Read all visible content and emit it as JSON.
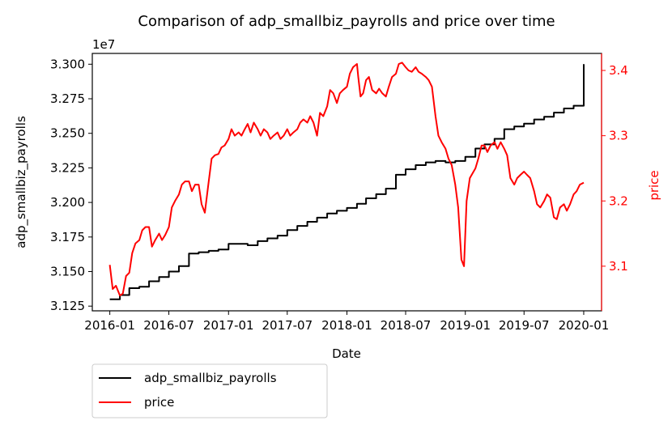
{
  "chart_data": {
    "type": "line",
    "title": "Comparison of adp_smallbiz_payrolls and price over time",
    "xlabel": "Date",
    "ylabel_left": "adp_smallbiz_payrolls",
    "ylabel_right": "price",
    "left_offset_text": "1e7",
    "x_range": [
      "2015-11-08",
      "2020-02-25"
    ],
    "x_ticks": [
      "2016-01",
      "2016-07",
      "2017-01",
      "2017-07",
      "2018-01",
      "2018-07",
      "2019-01",
      "2019-07",
      "2020-01"
    ],
    "x_tick_dates": [
      "2016-01-01",
      "2016-07-01",
      "2017-01-01",
      "2017-07-01",
      "2018-01-01",
      "2018-07-01",
      "2019-01-01",
      "2019-07-01",
      "2020-01-01"
    ],
    "ylim_left": [
      3.1216,
      3.3078
    ],
    "y_ticks_left": [
      "3.125",
      "3.150",
      "3.175",
      "3.200",
      "3.225",
      "3.250",
      "3.275",
      "3.300"
    ],
    "ylim_right": [
      3.0316,
      3.4261
    ],
    "y_ticks_right": [
      "3.1",
      "3.2",
      "3.3",
      "3.4"
    ],
    "grid": false,
    "legend_placement": "below-left",
    "colors": {
      "adp_smallbiz_payrolls": "#000000",
      "price": "#ff0000"
    },
    "series": [
      {
        "name": "adp_smallbiz_payrolls",
        "axis": "left",
        "step": true,
        "points": [
          [
            "2016-01-01",
            3.13
          ],
          [
            "2016-02-01",
            3.133
          ],
          [
            "2016-03-01",
            3.138
          ],
          [
            "2016-04-01",
            3.139
          ],
          [
            "2016-05-01",
            3.143
          ],
          [
            "2016-06-01",
            3.146
          ],
          [
            "2016-07-01",
            3.15
          ],
          [
            "2016-08-01",
            3.154
          ],
          [
            "2016-09-01",
            3.163
          ],
          [
            "2016-10-01",
            3.164
          ],
          [
            "2016-11-01",
            3.165
          ],
          [
            "2016-12-01",
            3.166
          ],
          [
            "2017-01-01",
            3.17
          ],
          [
            "2017-02-01",
            3.17
          ],
          [
            "2017-03-01",
            3.169
          ],
          [
            "2017-04-01",
            3.172
          ],
          [
            "2017-05-01",
            3.174
          ],
          [
            "2017-06-01",
            3.176
          ],
          [
            "2017-07-01",
            3.18
          ],
          [
            "2017-08-01",
            3.183
          ],
          [
            "2017-09-01",
            3.186
          ],
          [
            "2017-10-01",
            3.189
          ],
          [
            "2017-11-01",
            3.192
          ],
          [
            "2017-12-01",
            3.194
          ],
          [
            "2018-01-01",
            3.196
          ],
          [
            "2018-02-01",
            3.199
          ],
          [
            "2018-03-01",
            3.203
          ],
          [
            "2018-04-01",
            3.206
          ],
          [
            "2018-05-01",
            3.21
          ],
          [
            "2018-06-01",
            3.22
          ],
          [
            "2018-07-01",
            3.224
          ],
          [
            "2018-08-01",
            3.227
          ],
          [
            "2018-09-01",
            3.229
          ],
          [
            "2018-10-01",
            3.23
          ],
          [
            "2018-11-01",
            3.229
          ],
          [
            "2018-12-01",
            3.23
          ],
          [
            "2019-01-01",
            3.233
          ],
          [
            "2019-02-01",
            3.239
          ],
          [
            "2019-03-01",
            3.242
          ],
          [
            "2019-04-01",
            3.246
          ],
          [
            "2019-05-01",
            3.253
          ],
          [
            "2019-06-01",
            3.255
          ],
          [
            "2019-07-01",
            3.257
          ],
          [
            "2019-08-01",
            3.26
          ],
          [
            "2019-09-01",
            3.262
          ],
          [
            "2019-10-01",
            3.265
          ],
          [
            "2019-11-01",
            3.268
          ],
          [
            "2019-12-01",
            3.27
          ],
          [
            "2020-01-01",
            3.3
          ]
        ]
      },
      {
        "name": "price",
        "axis": "right",
        "step": false,
        "points": [
          [
            "2016-01-01",
            3.102
          ],
          [
            "2016-01-10",
            3.065
          ],
          [
            "2016-01-20",
            3.07
          ],
          [
            "2016-02-01",
            3.055
          ],
          [
            "2016-02-10",
            3.058
          ],
          [
            "2016-02-20",
            3.085
          ],
          [
            "2016-03-01",
            3.09
          ],
          [
            "2016-03-10",
            3.12
          ],
          [
            "2016-03-20",
            3.135
          ],
          [
            "2016-04-01",
            3.14
          ],
          [
            "2016-04-10",
            3.155
          ],
          [
            "2016-04-20",
            3.16
          ],
          [
            "2016-05-01",
            3.16
          ],
          [
            "2016-05-10",
            3.13
          ],
          [
            "2016-05-20",
            3.14
          ],
          [
            "2016-06-01",
            3.15
          ],
          [
            "2016-06-10",
            3.14
          ],
          [
            "2016-06-20",
            3.148
          ],
          [
            "2016-07-01",
            3.16
          ],
          [
            "2016-07-10",
            3.19
          ],
          [
            "2016-07-20",
            3.2
          ],
          [
            "2016-08-01",
            3.21
          ],
          [
            "2016-08-10",
            3.225
          ],
          [
            "2016-08-20",
            3.23
          ],
          [
            "2016-09-01",
            3.23
          ],
          [
            "2016-09-10",
            3.215
          ],
          [
            "2016-09-20",
            3.225
          ],
          [
            "2016-10-01",
            3.225
          ],
          [
            "2016-10-10",
            3.195
          ],
          [
            "2016-10-20",
            3.182
          ],
          [
            "2016-11-01",
            3.23
          ],
          [
            "2016-11-10",
            3.265
          ],
          [
            "2016-11-20",
            3.27
          ],
          [
            "2016-12-01",
            3.272
          ],
          [
            "2016-12-10",
            3.282
          ],
          [
            "2016-12-20",
            3.285
          ],
          [
            "2017-01-01",
            3.295
          ],
          [
            "2017-01-10",
            3.31
          ],
          [
            "2017-01-20",
            3.3
          ],
          [
            "2017-02-01",
            3.305
          ],
          [
            "2017-02-10",
            3.3
          ],
          [
            "2017-02-20",
            3.31
          ],
          [
            "2017-03-01",
            3.318
          ],
          [
            "2017-03-10",
            3.305
          ],
          [
            "2017-03-20",
            3.32
          ],
          [
            "2017-04-01",
            3.31
          ],
          [
            "2017-04-10",
            3.3
          ],
          [
            "2017-04-20",
            3.31
          ],
          [
            "2017-05-01",
            3.305
          ],
          [
            "2017-05-10",
            3.295
          ],
          [
            "2017-05-20",
            3.3
          ],
          [
            "2017-06-01",
            3.305
          ],
          [
            "2017-06-10",
            3.295
          ],
          [
            "2017-06-20",
            3.3
          ],
          [
            "2017-07-01",
            3.31
          ],
          [
            "2017-07-10",
            3.3
          ],
          [
            "2017-07-20",
            3.305
          ],
          [
            "2017-08-01",
            3.31
          ],
          [
            "2017-08-10",
            3.32
          ],
          [
            "2017-08-20",
            3.325
          ],
          [
            "2017-09-01",
            3.32
          ],
          [
            "2017-09-10",
            3.33
          ],
          [
            "2017-09-20",
            3.32
          ],
          [
            "2017-10-01",
            3.3
          ],
          [
            "2017-10-10",
            3.335
          ],
          [
            "2017-10-20",
            3.33
          ],
          [
            "2017-11-01",
            3.345
          ],
          [
            "2017-11-10",
            3.37
          ],
          [
            "2017-11-20",
            3.365
          ],
          [
            "2017-12-01",
            3.35
          ],
          [
            "2017-12-10",
            3.365
          ],
          [
            "2017-12-20",
            3.37
          ],
          [
            "2018-01-01",
            3.375
          ],
          [
            "2018-01-10",
            3.395
          ],
          [
            "2018-01-20",
            3.405
          ],
          [
            "2018-02-01",
            3.41
          ],
          [
            "2018-02-05",
            3.39
          ],
          [
            "2018-02-12",
            3.36
          ],
          [
            "2018-02-20",
            3.365
          ],
          [
            "2018-03-01",
            3.385
          ],
          [
            "2018-03-10",
            3.39
          ],
          [
            "2018-03-20",
            3.37
          ],
          [
            "2018-04-01",
            3.365
          ],
          [
            "2018-04-10",
            3.372
          ],
          [
            "2018-04-20",
            3.365
          ],
          [
            "2018-05-01",
            3.36
          ],
          [
            "2018-05-10",
            3.375
          ],
          [
            "2018-05-20",
            3.39
          ],
          [
            "2018-06-01",
            3.395
          ],
          [
            "2018-06-10",
            3.41
          ],
          [
            "2018-06-20",
            3.412
          ],
          [
            "2018-07-01",
            3.405
          ],
          [
            "2018-07-10",
            3.4
          ],
          [
            "2018-07-20",
            3.398
          ],
          [
            "2018-08-01",
            3.405
          ],
          [
            "2018-08-10",
            3.398
          ],
          [
            "2018-08-20",
            3.395
          ],
          [
            "2018-09-01",
            3.39
          ],
          [
            "2018-09-10",
            3.385
          ],
          [
            "2018-09-20",
            3.375
          ],
          [
            "2018-10-01",
            3.33
          ],
          [
            "2018-10-10",
            3.3
          ],
          [
            "2018-10-20",
            3.29
          ],
          [
            "2018-11-01",
            3.28
          ],
          [
            "2018-11-10",
            3.265
          ],
          [
            "2018-11-20",
            3.255
          ],
          [
            "2018-12-01",
            3.225
          ],
          [
            "2018-12-10",
            3.19
          ],
          [
            "2018-12-20",
            3.11
          ],
          [
            "2018-12-28",
            3.1
          ],
          [
            "2019-01-05",
            3.2
          ],
          [
            "2019-01-15",
            3.235
          ],
          [
            "2019-02-01",
            3.25
          ],
          [
            "2019-02-10",
            3.265
          ],
          [
            "2019-02-20",
            3.285
          ],
          [
            "2019-03-01",
            3.285
          ],
          [
            "2019-03-10",
            3.275
          ],
          [
            "2019-03-20",
            3.285
          ],
          [
            "2019-04-01",
            3.29
          ],
          [
            "2019-04-10",
            3.28
          ],
          [
            "2019-04-20",
            3.29
          ],
          [
            "2019-05-01",
            3.28
          ],
          [
            "2019-05-10",
            3.27
          ],
          [
            "2019-05-20",
            3.235
          ],
          [
            "2019-06-01",
            3.225
          ],
          [
            "2019-06-10",
            3.235
          ],
          [
            "2019-06-20",
            3.24
          ],
          [
            "2019-07-01",
            3.245
          ],
          [
            "2019-07-10",
            3.24
          ],
          [
            "2019-07-20",
            3.235
          ],
          [
            "2019-08-01",
            3.215
          ],
          [
            "2019-08-10",
            3.195
          ],
          [
            "2019-08-20",
            3.19
          ],
          [
            "2019-09-01",
            3.2
          ],
          [
            "2019-09-10",
            3.21
          ],
          [
            "2019-09-20",
            3.205
          ],
          [
            "2019-10-01",
            3.175
          ],
          [
            "2019-10-10",
            3.172
          ],
          [
            "2019-10-20",
            3.19
          ],
          [
            "2019-11-01",
            3.195
          ],
          [
            "2019-11-10",
            3.185
          ],
          [
            "2019-11-20",
            3.195
          ],
          [
            "2019-12-01",
            3.21
          ],
          [
            "2019-12-10",
            3.215
          ],
          [
            "2019-12-20",
            3.225
          ],
          [
            "2020-01-01",
            3.228
          ]
        ]
      }
    ]
  }
}
